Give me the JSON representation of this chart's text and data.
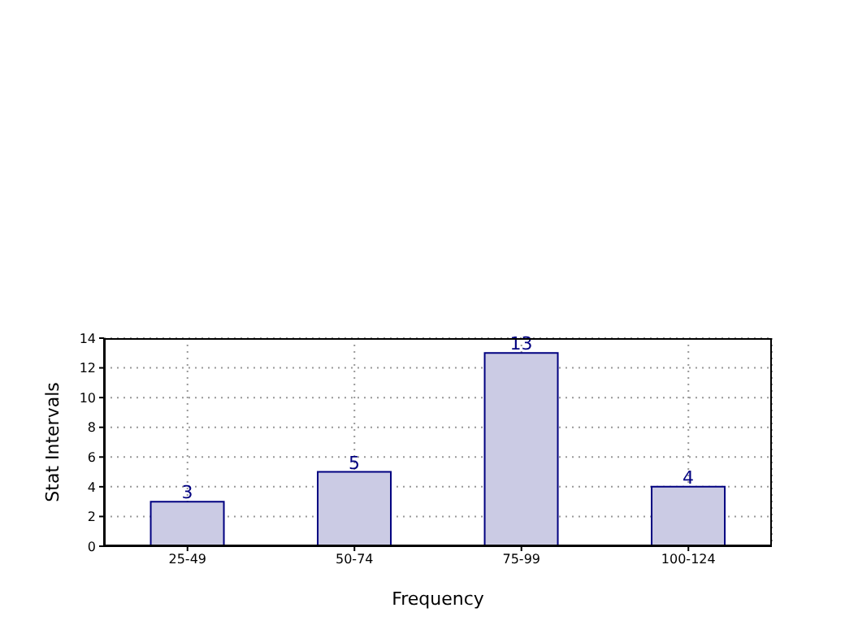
{
  "chart_data": {
    "type": "bar",
    "categories": [
      "25-49",
      "50-74",
      "75-99",
      "100-124"
    ],
    "values": [
      3,
      5,
      13,
      4
    ],
    "color": "#cbcbe4",
    "xlabel": "Frequency",
    "ylabel": "Stat Intervals",
    "ylim": [
      0,
      14
    ],
    "yticks": [
      0,
      2,
      4,
      6,
      8,
      10,
      12,
      14
    ],
    "grid": true,
    "data_labels": true
  }
}
